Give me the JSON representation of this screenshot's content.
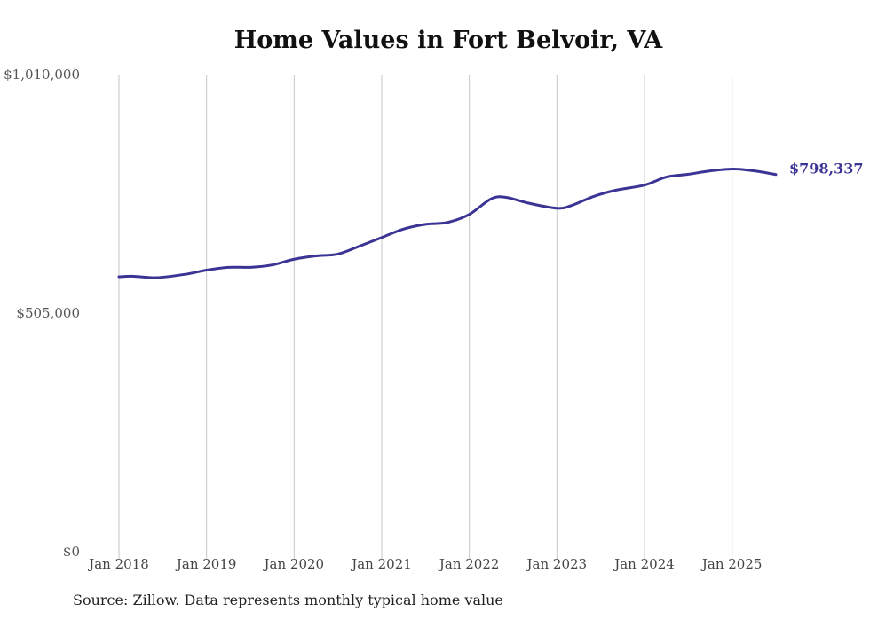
{
  "chart_data": {
    "type": "line",
    "title": "Home Values in Fort Belvoir, VA",
    "footer": "Source: Zillow. Data represents monthly typical home value",
    "xlabel": "",
    "ylabel": "",
    "ylim": [
      0,
      1010000
    ],
    "yticks": [
      0,
      505000,
      1010000
    ],
    "ytick_labels": [
      "$0",
      "$505,000",
      "$1,010,000"
    ],
    "xticks": [
      2018,
      2019,
      2020,
      2021,
      2022,
      2023,
      2024,
      2025
    ],
    "xtick_labels": [
      "Jan 2018",
      "Jan 2019",
      "Jan 2020",
      "Jan 2021",
      "Jan 2022",
      "Jan 2023",
      "Jan 2024",
      "Jan 2025"
    ],
    "xlim": [
      2018,
      2025.5
    ],
    "grid": "vertical",
    "line_color": "#3a3494",
    "end_label": "$798,337",
    "series": [
      {
        "x": [
          2018.0,
          2018.17,
          2018.42,
          2018.75,
          2019.0,
          2019.25,
          2019.5,
          2019.75,
          2020.0,
          2020.25,
          2020.5,
          2020.75,
          2021.0,
          2021.25,
          2021.5,
          2021.75,
          2022.0,
          2022.25,
          2022.42,
          2022.67,
          2023.0,
          2023.17,
          2023.42,
          2023.67,
          2024.0,
          2024.25,
          2024.5,
          2024.75,
          2025.0,
          2025.17,
          2025.33,
          2025.5
        ],
        "y": [
          582000,
          583000,
          580000,
          587000,
          596000,
          602000,
          602000,
          607000,
          619000,
          626000,
          630000,
          647000,
          665000,
          683000,
          693000,
          697000,
          714000,
          747000,
          750000,
          738000,
          727000,
          733000,
          752000,
          765000,
          776000,
          793000,
          799000,
          806000,
          810000,
          808000,
          804000,
          798337
        ]
      }
    ]
  }
}
